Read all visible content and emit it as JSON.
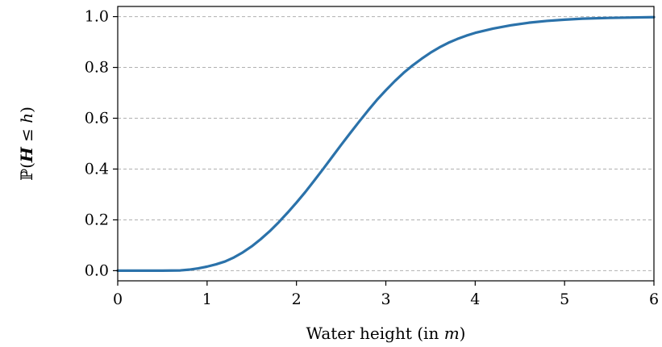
{
  "chart_data": {
    "type": "line",
    "title": "",
    "xlabel": "Water height (in m)",
    "xlabel_parts": {
      "text": "Water height (in ",
      "var": "m",
      "close": ")"
    },
    "ylabel": "ℙ(H ≤ h)",
    "ylabel_parts": {
      "pre": "ℙ(",
      "var1": "H",
      "op": " ≤ ",
      "var2": "h",
      "post": ")"
    },
    "xlim": [
      0,
      6
    ],
    "ylim": [
      -0.04,
      1.04
    ],
    "xticks": [
      0,
      1,
      2,
      3,
      4,
      5,
      6
    ],
    "xtick_labels": [
      "0",
      "1",
      "2",
      "3",
      "4",
      "5",
      "6"
    ],
    "yticks": [
      0.0,
      0.2,
      0.4,
      0.6,
      0.8,
      1.0
    ],
    "ytick_labels": [
      "0.0",
      "0.2",
      "0.4",
      "0.6",
      "0.8",
      "1.0"
    ],
    "grid": {
      "y": true,
      "x": false,
      "style": "dashed"
    },
    "colors": {
      "series": "#2b72aa",
      "grid": "#b0b0b0",
      "frame": "#000000"
    },
    "series": [
      {
        "x": [
          0,
          0.5,
          0.7,
          0.8,
          0.9,
          1.0,
          1.1,
          1.2,
          1.3,
          1.4,
          1.5,
          1.6,
          1.7,
          1.8,
          1.9,
          2.0,
          2.1,
          2.2,
          2.3,
          2.4,
          2.5,
          2.6,
          2.7,
          2.8,
          2.9,
          3.0,
          3.1,
          3.2,
          3.3,
          3.4,
          3.5,
          3.6,
          3.7,
          3.8,
          3.9,
          4.0,
          4.2,
          4.4,
          4.6,
          4.8,
          5.0,
          5.2,
          5.5,
          6.0
        ],
        "y": [
          0.0,
          0.0,
          0.001,
          0.004,
          0.009,
          0.016,
          0.025,
          0.036,
          0.052,
          0.072,
          0.096,
          0.124,
          0.155,
          0.19,
          0.228,
          0.268,
          0.31,
          0.355,
          0.401,
          0.448,
          0.495,
          0.541,
          0.586,
          0.63,
          0.672,
          0.71,
          0.746,
          0.779,
          0.808,
          0.834,
          0.858,
          0.879,
          0.897,
          0.912,
          0.925,
          0.936,
          0.953,
          0.966,
          0.976,
          0.983,
          0.988,
          0.992,
          0.995,
          0.998
        ]
      }
    ]
  }
}
